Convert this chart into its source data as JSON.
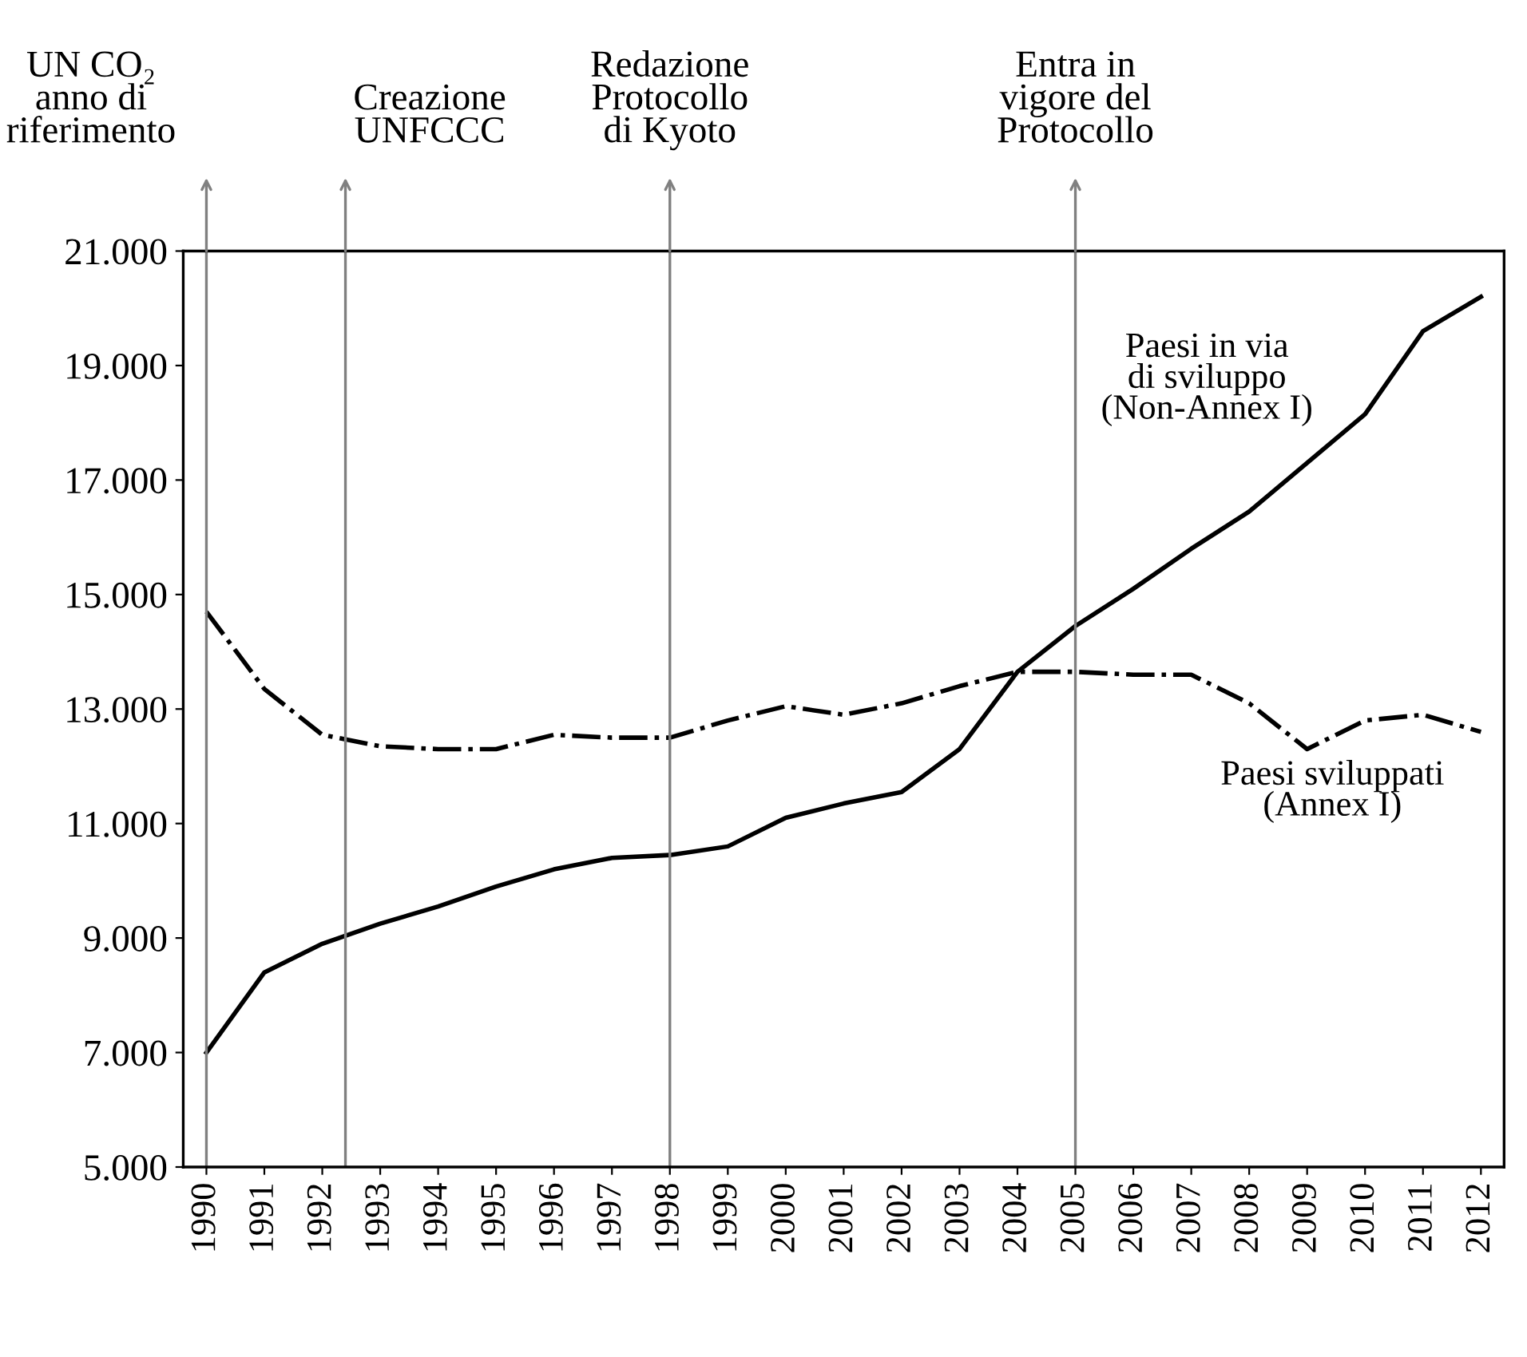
{
  "chart_data": {
    "type": "line",
    "x": [
      1990,
      1991,
      1992,
      1993,
      1994,
      1995,
      1996,
      1997,
      1998,
      1999,
      2000,
      2001,
      2002,
      2003,
      2004,
      2005,
      2006,
      2007,
      2008,
      2009,
      2010,
      2011,
      2012
    ],
    "series": [
      {
        "name": "Paesi in via di sviluppo (Non-Annex I)",
        "color": "#000000",
        "line_style": "solid",
        "values": [
          7000,
          8400,
          8900,
          9250,
          9550,
          9900,
          10200,
          10400,
          10450,
          10600,
          11100,
          11350,
          11550,
          12300,
          13650,
          14450,
          15100,
          15800,
          16450,
          17300,
          18150,
          19600,
          20200
        ]
      },
      {
        "name": "Paesi sviluppati (Annex I)",
        "color": "#000000",
        "line_style": "dashdot",
        "values": [
          14700,
          13350,
          12550,
          12350,
          12300,
          12300,
          12550,
          12500,
          12500,
          12800,
          13050,
          12900,
          13100,
          13400,
          13650,
          13650,
          13600,
          13600,
          13100,
          12300,
          12800,
          12900,
          12600
        ]
      }
    ],
    "ref_lines": [
      {
        "axis": "x",
        "value": 1990,
        "label": "UN CO₂\nanno di\nriferimento",
        "color": "#808080"
      },
      {
        "axis": "x",
        "value": 1992.4,
        "label": "Creazione\nUNFCCC",
        "color": "#808080"
      },
      {
        "axis": "x",
        "value": 1998,
        "label": "Redazione\nProtocollo\ndi Kyoto",
        "color": "#808080"
      },
      {
        "axis": "x",
        "value": 2005,
        "label": "Entra in\nvigore del\nProtocollo",
        "color": "#808080"
      }
    ],
    "xlim": [
      1989.6,
      2012.4
    ],
    "xticks": [
      1990,
      1991,
      1992,
      1993,
      1994,
      1995,
      1996,
      1997,
      1998,
      1999,
      2000,
      2001,
      2002,
      2003,
      2004,
      2005,
      2006,
      2007,
      2008,
      2009,
      2010,
      2011,
      2012
    ],
    "ylim": [
      5000,
      21000
    ],
    "yticks": [
      {
        "value": 5000,
        "label": "5.000"
      },
      {
        "value": 7000,
        "label": "7.000"
      },
      {
        "value": 9000,
        "label": "9.000"
      },
      {
        "value": 11000,
        "label": "11.000"
      },
      {
        "value": 13000,
        "label": "13.000"
      },
      {
        "value": 15000,
        "label": "15.000"
      },
      {
        "value": 17000,
        "label": "17.000"
      },
      {
        "value": 19000,
        "label": "19.000"
      },
      {
        "value": 21000,
        "label": "21.000"
      }
    ],
    "grid": false,
    "legend": false,
    "marker": "none"
  }
}
